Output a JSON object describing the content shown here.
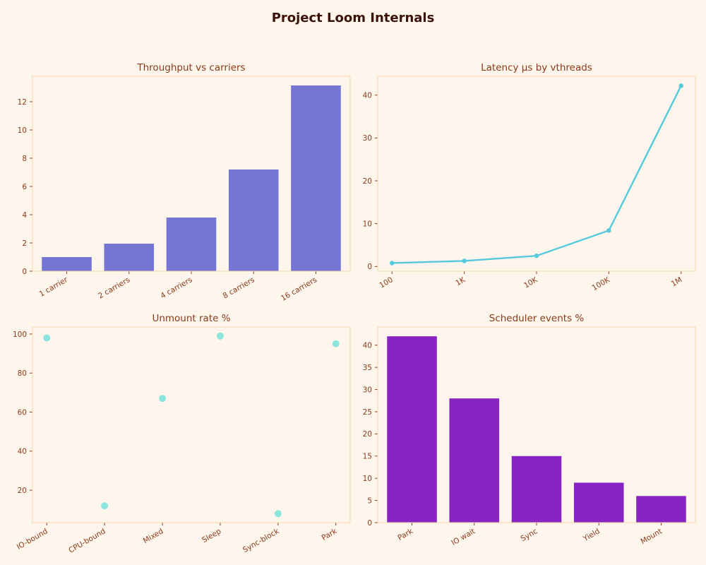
{
  "title": "Project Loom Internals",
  "chart_data": [
    {
      "type": "bar",
      "title": "Throughput vs carriers",
      "categories": [
        "1 carrier",
        "2 carriers",
        "4 carriers",
        "8 carriers",
        "16 carriers"
      ],
      "values": [
        1.0,
        1.95,
        3.8,
        7.2,
        13.15
      ],
      "ylim": [
        0,
        13.8
      ],
      "yticks": [
        0,
        2,
        4,
        6,
        8,
        10,
        12
      ],
      "color": "#7575d3",
      "xlabel": "",
      "ylabel": ""
    },
    {
      "type": "line",
      "title": "Latency μs by vthreads",
      "categories": [
        "100",
        "1K",
        "10K",
        "100K",
        "1M"
      ],
      "values": [
        0.8,
        1.3,
        2.5,
        8.4,
        42.2
      ],
      "ylim": [
        -1.1,
        44.4
      ],
      "yticks": [
        0,
        10,
        20,
        30,
        40
      ],
      "color": "#56c9df",
      "xlabel": "",
      "ylabel": ""
    },
    {
      "type": "scatter",
      "title": "Unmount rate %",
      "categories": [
        "IO-bound",
        "CPU-bound",
        "Mixed",
        "Sleep",
        "Sync-block",
        "Park"
      ],
      "values": [
        98,
        12,
        67,
        99,
        8,
        95
      ],
      "ylim": [
        3.4,
        103.6
      ],
      "yticks": [
        20,
        40,
        60,
        80,
        100
      ],
      "color": "#7ee3de",
      "xlabel": "",
      "ylabel": ""
    },
    {
      "type": "bar",
      "title": "Scheduler events %",
      "categories": [
        "Park",
        "IO wait",
        "Sync",
        "Yield",
        "Mount"
      ],
      "values": [
        42,
        28,
        15,
        9,
        6
      ],
      "ylim": [
        0,
        44.1
      ],
      "yticks": [
        0,
        5,
        10,
        15,
        20,
        25,
        30,
        35,
        40
      ],
      "color": "#8824c3",
      "xlabel": "",
      "ylabel": ""
    }
  ]
}
